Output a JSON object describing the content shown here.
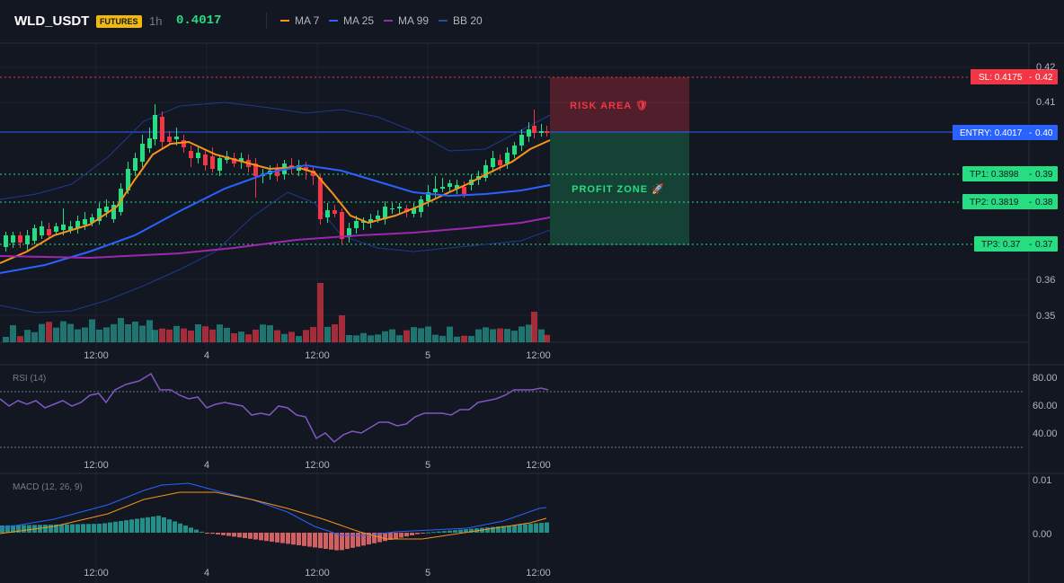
{
  "header": {
    "symbol": "WLD_USDT",
    "badge": "FUTURES",
    "timeframe": "1h",
    "price": "0.4017",
    "indicators": [
      {
        "label": "MA 7",
        "color": "#f7931a"
      },
      {
        "label": "MA 25",
        "color": "#2962ff"
      },
      {
        "label": "MA 99",
        "color": "#9c27b0"
      },
      {
        "label": "BB 20",
        "color": "#1e3a8a"
      }
    ]
  },
  "price_axis": [
    "0.42",
    "0.41",
    "0.36",
    "0.35"
  ],
  "time_axis": [
    "12:00",
    "4",
    "12:00",
    "5",
    "12:00"
  ],
  "levels": {
    "sl": {
      "label": "SL: 0.4175",
      "tag": "0.42",
      "color": "#f23645"
    },
    "entry": {
      "label": "ENTRY: 0.4017",
      "tag": "0.40",
      "color": "#2962ff"
    },
    "tp1": {
      "label": "TP1: 0.3898",
      "tag": "0.39",
      "color": "#26de81"
    },
    "tp2": {
      "label": "TP2: 0.3819",
      "tag": "0.38",
      "color": "#26de81"
    },
    "tp3": {
      "label": "TP3: 0.37",
      "tag": "0.37",
      "color": "#26de81"
    }
  },
  "zones": {
    "risk": "RISK AREA 🛡",
    "profit": "PROFIT ZONE 🚀"
  },
  "rsi": {
    "label": "RSI (14)",
    "axis": [
      "80.00",
      "60.00",
      "40.00"
    ]
  },
  "macd": {
    "label": "MACD (12, 26, 9)",
    "axis": [
      "0.01",
      "0.00"
    ]
  },
  "colors": {
    "up": "#26a69a",
    "up_bright": "#26de81",
    "down": "#f23645",
    "bg": "#131722"
  }
}
